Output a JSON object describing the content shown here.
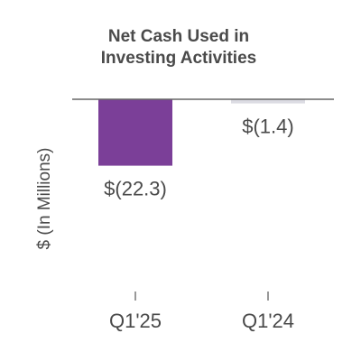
{
  "chart_data": {
    "type": "bar",
    "title": [
      "Net Cash Used in",
      "Investing Activities"
    ],
    "ylabel": "$ (In Millions)",
    "xlabel": "",
    "categories": [
      "Q1'25",
      "Q1'24"
    ],
    "values": [
      -22.3,
      -1.4
    ],
    "data_labels": [
      "$(22.3)",
      "$(1.4)"
    ],
    "colors": [
      "#7b3f98",
      "#dcdce3"
    ],
    "ylim": [
      -30,
      0
    ],
    "grid": false,
    "legend": "none"
  }
}
